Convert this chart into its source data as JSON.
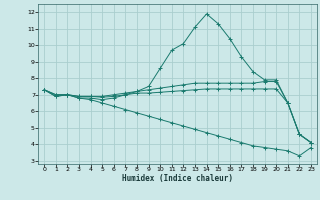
{
  "xlabel": "Humidex (Indice chaleur)",
  "ylabel": "",
  "bg_color": "#cce8e8",
  "grid_color": "#aacece",
  "line_color": "#1a7a6e",
  "xlim": [
    -0.5,
    23.5
  ],
  "ylim": [
    2.8,
    12.5
  ],
  "xticks": [
    0,
    1,
    2,
    3,
    4,
    5,
    6,
    7,
    8,
    9,
    10,
    11,
    12,
    13,
    14,
    15,
    16,
    17,
    18,
    19,
    20,
    21,
    22,
    23
  ],
  "yticks": [
    3,
    4,
    5,
    6,
    7,
    8,
    9,
    10,
    11,
    12
  ],
  "lines": [
    {
      "x": [
        0,
        1,
        2,
        3,
        4,
        5,
        6,
        7,
        8,
        9,
        10,
        11,
        12,
        13,
        14,
        15,
        16,
        17,
        18,
        19,
        20,
        21,
        22,
        23
      ],
      "y": [
        7.3,
        6.9,
        7.0,
        6.8,
        6.8,
        6.7,
        6.8,
        7.0,
        7.2,
        7.5,
        8.6,
        9.7,
        10.1,
        11.1,
        11.9,
        11.3,
        10.4,
        9.3,
        8.4,
        7.9,
        7.9,
        6.5,
        4.6,
        4.1
      ]
    },
    {
      "x": [
        0,
        1,
        2,
        3,
        4,
        5,
        6,
        7,
        8,
        9,
        10,
        11,
        12,
        13,
        14,
        15,
        16,
        17,
        18,
        19,
        20,
        21,
        22,
        23
      ],
      "y": [
        7.3,
        7.0,
        7.0,
        6.9,
        6.9,
        6.9,
        7.0,
        7.1,
        7.2,
        7.3,
        7.4,
        7.5,
        7.6,
        7.7,
        7.7,
        7.7,
        7.7,
        7.7,
        7.7,
        7.8,
        7.8,
        6.5,
        4.6,
        4.1
      ]
    },
    {
      "x": [
        0,
        1,
        2,
        3,
        4,
        5,
        6,
        7,
        8,
        9,
        10,
        11,
        12,
        13,
        14,
        15,
        16,
        17,
        18,
        19,
        20,
        21,
        22,
        23
      ],
      "y": [
        7.3,
        7.0,
        7.0,
        6.9,
        6.9,
        6.85,
        6.9,
        7.0,
        7.1,
        7.1,
        7.15,
        7.2,
        7.25,
        7.3,
        7.35,
        7.35,
        7.35,
        7.35,
        7.35,
        7.35,
        7.35,
        6.5,
        4.6,
        4.1
      ]
    },
    {
      "x": [
        0,
        1,
        2,
        3,
        4,
        5,
        6,
        7,
        8,
        9,
        10,
        11,
        12,
        13,
        14,
        15,
        16,
        17,
        18,
        19,
        20,
        21,
        22,
        23
      ],
      "y": [
        7.3,
        6.9,
        7.0,
        6.8,
        6.7,
        6.5,
        6.3,
        6.1,
        5.9,
        5.7,
        5.5,
        5.3,
        5.1,
        4.9,
        4.7,
        4.5,
        4.3,
        4.1,
        3.9,
        3.8,
        3.7,
        3.6,
        3.3,
        3.8
      ]
    }
  ],
  "marker": "+"
}
